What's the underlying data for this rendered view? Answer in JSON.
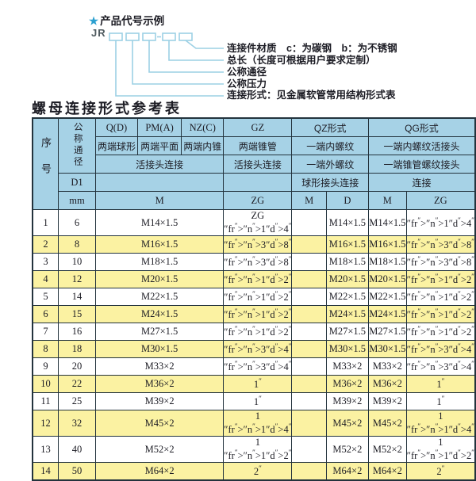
{
  "colors": {
    "header_blue": "#a6d2e6",
    "row_yellow": "#fbf2a2",
    "border_dark": "#23333d",
    "diagram_line_blue": "#9cd0e4",
    "star_blue": "#2ba0d0"
  },
  "diagram": {
    "star_icon": "★",
    "heading": "产品代号示例",
    "code_prefix": "JR",
    "labels": [
      "连接件材质　c：为碳钢　b：为不锈钢",
      "总长（长度可根据用户要求定制）",
      "公称通径",
      "公称压力",
      "连接形式：见金属软管常用结构形式表"
    ]
  },
  "table": {
    "title": "螺母连接形式参考表",
    "header": {
      "seq": "序号",
      "nominal": "公称通径",
      "d1": "D1",
      "unit": "mm",
      "groups": [
        "Q(D)",
        "PM(A)",
        "NZ(C)",
        "GZ",
        "QZ形式",
        "QG形式"
      ],
      "styles": [
        "两端球形",
        "两端平面",
        "两端内锥",
        "两端锥管",
        "一端内螺纹",
        "一端内螺纹活接头"
      ],
      "connections": [
        "活接头连接",
        "活接头连接",
        "一端外螺纹",
        "一端锥管螺纹接头"
      ],
      "sub_connections": [
        "球形接头连接",
        "连接"
      ],
      "thread_cols": [
        "M",
        "ZG",
        "M",
        "D",
        "M",
        "ZG"
      ]
    },
    "rows": [
      {
        "no": "1",
        "dn": "6",
        "m": "M14×1.5",
        "zg": "ZG 1/4\"",
        "qz_m": "",
        "qz_d": "M14×1.5",
        "qg_m": "M14×1.5",
        "qg_zg": "1/4\""
      },
      {
        "no": "2",
        "dn": "8",
        "m": "M16×1.5",
        "zg": "3/8\"",
        "qz_m": "",
        "qz_d": "M16×1.5",
        "qg_m": "M16×1.5",
        "qg_zg": "3/8\""
      },
      {
        "no": "3",
        "dn": "10",
        "m": "M18×1.5",
        "zg": "3/8\"",
        "qz_m": "",
        "qz_d": "M18×1.5",
        "qg_m": "M18×1.5",
        "qg_zg": "3/8\""
      },
      {
        "no": "4",
        "dn": "12",
        "m": "M20×1.5",
        "zg": "1/2\"",
        "qz_m": "",
        "qz_d": "M20×1.5",
        "qg_m": "M20×1.5",
        "qg_zg": "1/2\""
      },
      {
        "no": "5",
        "dn": "14",
        "m": "M22×1.5",
        "zg": "1/2\"",
        "qz_m": "",
        "qz_d": "M22×1.5",
        "qg_m": "M22×1.5",
        "qg_zg": "1/2\""
      },
      {
        "no": "6",
        "dn": "15",
        "m": "M24×1.5",
        "zg": "1/2\"",
        "qz_m": "",
        "qz_d": "M24×1.5",
        "qg_m": "M24×1.5",
        "qg_zg": "1/2\""
      },
      {
        "no": "7",
        "dn": "16",
        "m": "M27×1.5",
        "zg": "1/2\"",
        "qz_m": "",
        "qz_d": "M27×1.5",
        "qg_m": "M27×1.5",
        "qg_zg": "1/2\""
      },
      {
        "no": "8",
        "dn": "18",
        "m": "M30×1.5",
        "zg": "3/4\"",
        "qz_m": "",
        "qz_d": "M30×1.5",
        "qg_m": "M30×1.5",
        "qg_zg": "3/4\""
      },
      {
        "no": "9",
        "dn": "20",
        "m": "M33×2",
        "zg": "3/4\"",
        "qz_m": "",
        "qz_d": "M33×2",
        "qg_m": "M33×2",
        "qg_zg": "3/4\""
      },
      {
        "no": "10",
        "dn": "22",
        "m": "M36×2",
        "zg": "1\"",
        "qz_m": "",
        "qz_d": "M36×2",
        "qg_m": "M36×2",
        "qg_zg": "1\""
      },
      {
        "no": "11",
        "dn": "25",
        "m": "M39×2",
        "zg": "1\"",
        "qz_m": "",
        "qz_d": "M39×2",
        "qg_m": "M39×2",
        "qg_zg": "1\""
      },
      {
        "no": "12",
        "dn": "32",
        "m": "M45×2",
        "zg": "1 1/4\"",
        "qz_m": "",
        "qz_d": "M45×2",
        "qg_m": "M45×2",
        "qg_zg": "1 1/4\""
      },
      {
        "no": "13",
        "dn": "40",
        "m": "M52×2",
        "zg": "1 1/2\"",
        "qz_m": "",
        "qz_d": "M52×2",
        "qg_m": "M52×2",
        "qg_zg": "1 1/2\""
      },
      {
        "no": "14",
        "dn": "50",
        "m": "M64×2",
        "zg": "2\"",
        "qz_m": "",
        "qz_d": "M64×2",
        "qg_m": "M64×2",
        "qg_zg": "2\""
      }
    ]
  }
}
